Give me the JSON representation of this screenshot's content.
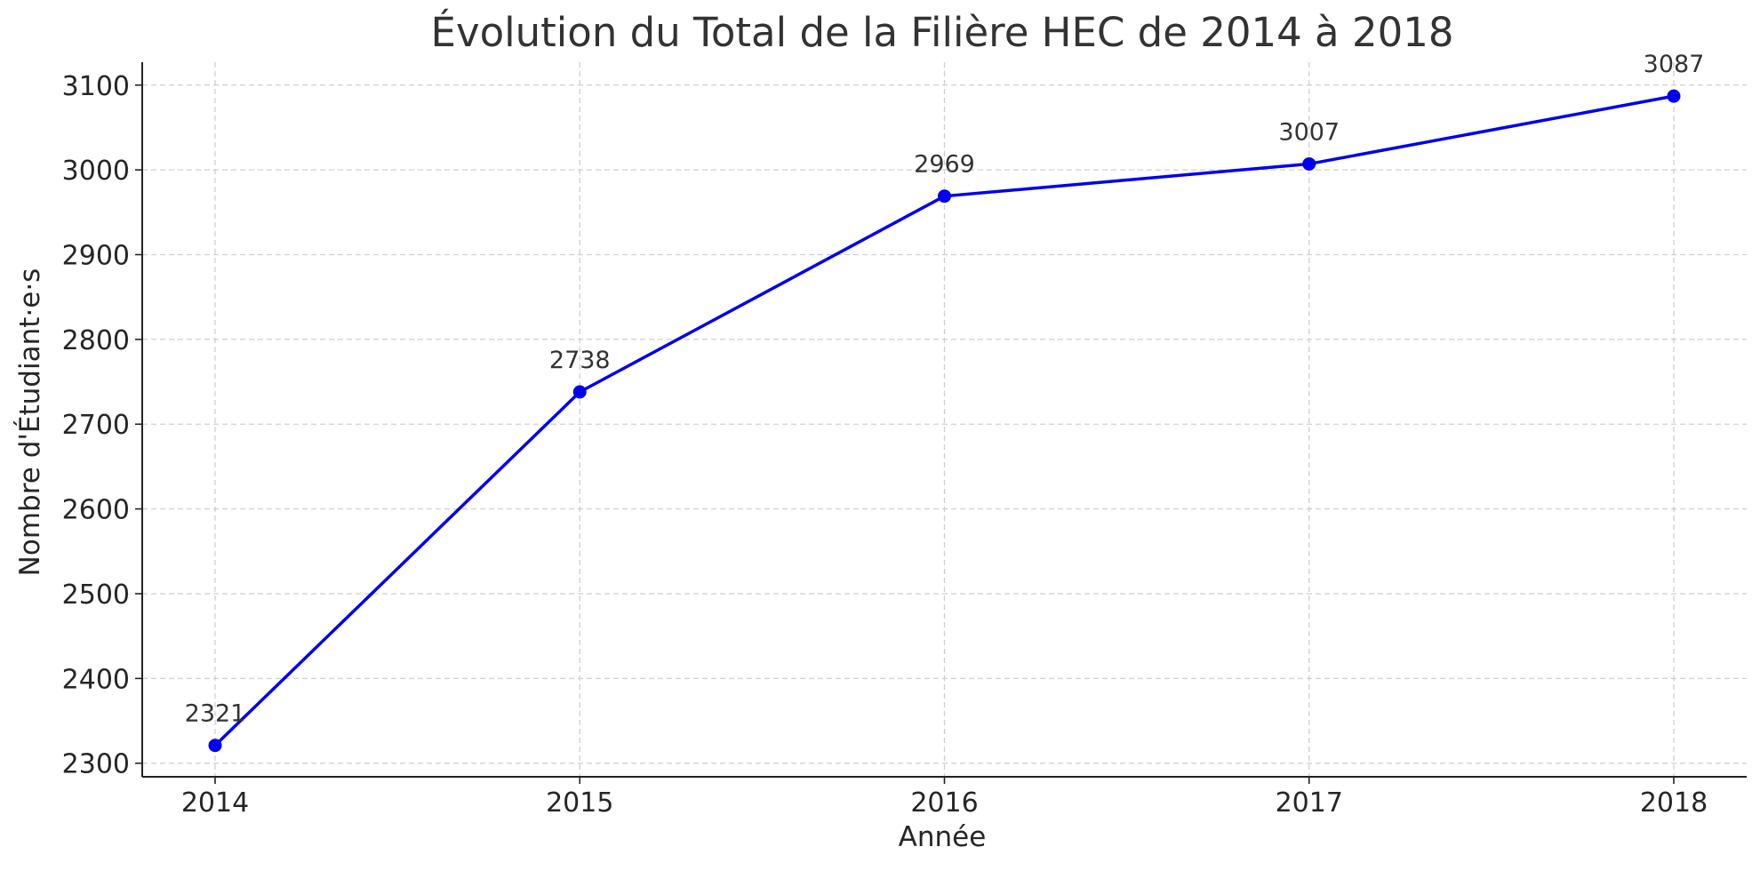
{
  "chart_data": {
    "type": "line",
    "title": "Évolution du Total de la Filière HEC de 2014 à 2018",
    "xlabel": "Année",
    "ylabel": "Nombre d'Étudiant·e·s",
    "categories": [
      "2014",
      "2015",
      "2016",
      "2017",
      "2018"
    ],
    "series": [
      {
        "values": [
          2321,
          2738,
          2969,
          3007,
          3087
        ],
        "color": "#0000ee",
        "marker": "circle"
      }
    ],
    "yticks": [
      2300,
      2400,
      2500,
      2600,
      2700,
      2800,
      2900,
      3000,
      3100
    ],
    "ylim": [
      2284,
      3127
    ],
    "grid": true,
    "data_labels": true
  }
}
